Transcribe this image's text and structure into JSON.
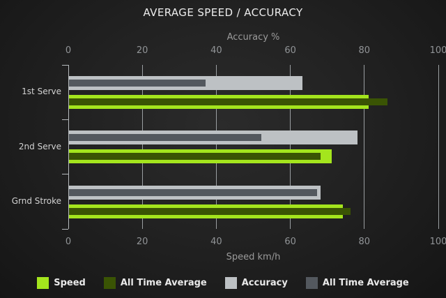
{
  "title": "AVERAGE SPEED / ACCURACY",
  "chart_data": {
    "type": "bar",
    "orientation": "horizontal",
    "categories": [
      "1st Serve",
      "2nd Serve",
      "Grnd Stroke"
    ],
    "series": [
      {
        "key": "speed",
        "name": "Speed",
        "axis": "bottom",
        "color": "#a4e51d",
        "values": [
          81,
          71,
          74
        ]
      },
      {
        "key": "speed-all-time-average",
        "name": "All Time Average",
        "axis": "bottom",
        "color": "#3a5404",
        "values": [
          86,
          68,
          76
        ]
      },
      {
        "key": "accuracy",
        "name": "Accuracy",
        "axis": "top",
        "color": "#bdc1c4",
        "values": [
          63,
          78,
          68
        ]
      },
      {
        "key": "accuracy-all-time-average",
        "name": "All Time Average",
        "axis": "top",
        "color": "#53585e",
        "values": [
          37,
          52,
          67
        ]
      }
    ],
    "top_axis": {
      "label": "Accuracy %",
      "range": [
        0,
        100
      ],
      "ticks": [
        "0",
        "20",
        "40",
        "60",
        "80",
        "100"
      ]
    },
    "bottom_axis": {
      "label": "Speed km/h",
      "range": [
        0,
        100
      ],
      "ticks": [
        "0",
        "20",
        "40",
        "60",
        "80",
        "100"
      ]
    },
    "grid": true,
    "legend_position": "bottom",
    "colors": {
      "background": "#1f1f1f",
      "grid": "#9b9fa2",
      "axis": "#b6babd",
      "tick_text": "#919497"
    }
  }
}
